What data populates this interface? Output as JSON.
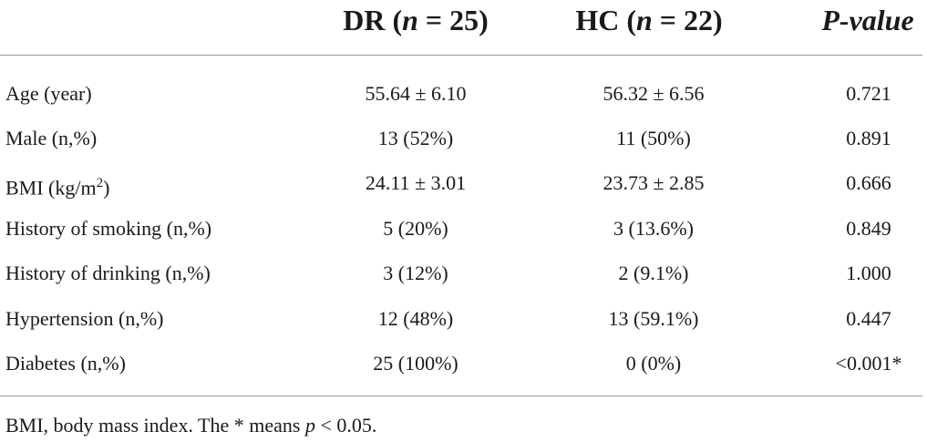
{
  "table": {
    "headers": {
      "dr_prefix": "DR (",
      "dr_n": "n",
      "dr_suffix": " = 25)",
      "hc_prefix": "HC (",
      "hc_n": "n",
      "hc_suffix": " = 22)",
      "p_value": "P-value"
    },
    "rows": [
      {
        "label": "Age (year)",
        "dr": "55.64 ± 6.10",
        "hc": "56.32 ± 6.56",
        "p": "0.721"
      },
      {
        "label": "Male (n,%)",
        "dr": "13 (52%)",
        "hc": "11 (50%)",
        "p": "0.891"
      },
      {
        "label_prefix": "BMI (kg/m",
        "label_sup": "2",
        "label_suffix": ")",
        "dr": "24.11 ± 3.01",
        "hc": "23.73 ± 2.85",
        "p": "0.666"
      },
      {
        "label": "History of smoking (n,%)",
        "dr": "5 (20%)",
        "hc": "3 (13.6%)",
        "p": "0.849"
      },
      {
        "label": "History of drinking (n,%)",
        "dr": "3 (12%)",
        "hc": "2 (9.1%)",
        "p": "1.000"
      },
      {
        "label": "Hypertension (n,%)",
        "dr": "12 (48%)",
        "hc": "13 (59.1%)",
        "p": "0.447"
      },
      {
        "label": "Diabetes (n,%)",
        "dr": "25 (100%)",
        "hc": "0 (0%)",
        "p": "<0.001*"
      }
    ]
  },
  "footnote": {
    "text_before": "BMI, body mass index. The * means ",
    "p_symbol": "p",
    "text_after": " < 0.05."
  }
}
